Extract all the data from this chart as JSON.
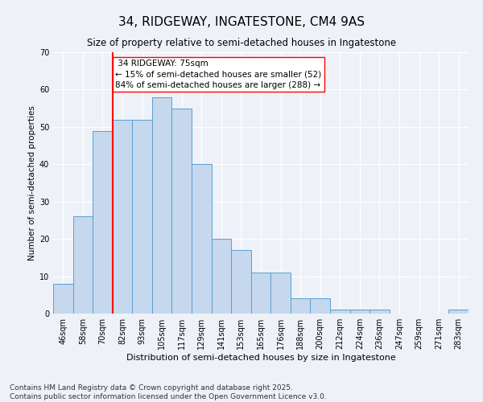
{
  "title": "34, RIDGEWAY, INGATESTONE, CM4 9AS",
  "subtitle": "Size of property relative to semi-detached houses in Ingatestone",
  "xlabel": "Distribution of semi-detached houses by size in Ingatestone",
  "ylabel": "Number of semi-detached properties",
  "categories": [
    "46sqm",
    "58sqm",
    "70sqm",
    "82sqm",
    "93sqm",
    "105sqm",
    "117sqm",
    "129sqm",
    "141sqm",
    "153sqm",
    "165sqm",
    "176sqm",
    "188sqm",
    "200sqm",
    "212sqm",
    "224sqm",
    "236sqm",
    "247sqm",
    "259sqm",
    "271sqm",
    "283sqm"
  ],
  "values": [
    8,
    26,
    49,
    52,
    52,
    58,
    55,
    40,
    20,
    17,
    11,
    11,
    4,
    4,
    1,
    1,
    1,
    0,
    0,
    0,
    1
  ],
  "bar_color": "#c5d8ed",
  "bar_edge_color": "#5a9fd4",
  "red_line_x": 2.5,
  "red_line_label": "34 RIDGEWAY: 75sqm",
  "annotation_line1": "← 15% of semi-detached houses are smaller (52)",
  "annotation_line2": "84% of semi-detached houses are larger (288) →",
  "ylim": [
    0,
    70
  ],
  "yticks": [
    0,
    10,
    20,
    30,
    40,
    50,
    60,
    70
  ],
  "footer_line1": "Contains HM Land Registry data © Crown copyright and database right 2025.",
  "footer_line2": "Contains public sector information licensed under the Open Government Licence v3.0.",
  "bg_color": "#eef2f8",
  "grid_color": "#ffffff",
  "title_fontsize": 11,
  "subtitle_fontsize": 8.5,
  "annotation_fontsize": 7.5,
  "axis_label_fontsize": 8,
  "tick_fontsize": 7,
  "footer_fontsize": 6.5,
  "ylabel_fontsize": 7.5
}
